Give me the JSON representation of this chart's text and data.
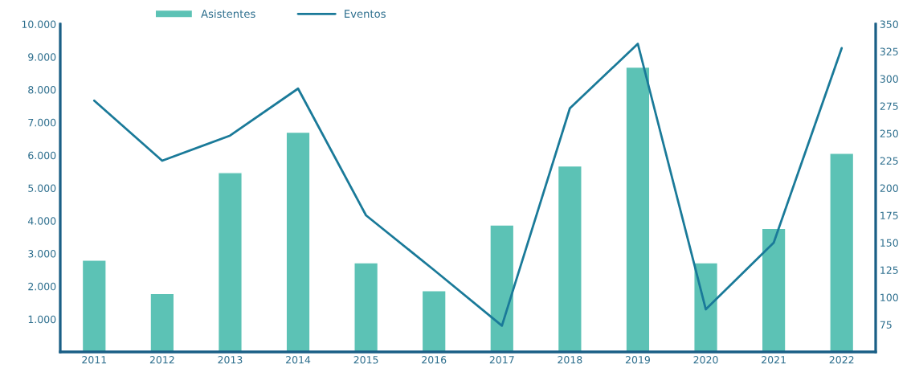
{
  "chart_data": {
    "type": "bar",
    "categories": [
      "2011",
      "2012",
      "2013",
      "2014",
      "2015",
      "2016",
      "2017",
      "2018",
      "2019",
      "2020",
      "2021",
      "2022"
    ],
    "series": [
      {
        "name": "Asistentes",
        "color": "#5cc2b5",
        "values": [
          2800,
          1780,
          5470,
          6700,
          2720,
          1870,
          3870,
          5670,
          8690,
          2720,
          3770,
          6060
        ]
      },
      {
        "name": "Eventos",
        "type": "line",
        "axis": "y2",
        "color": "#1a7a99",
        "values": [
          280,
          225,
          248,
          291,
          175,
          125,
          74,
          273,
          332,
          89,
          150,
          328
        ]
      }
    ],
    "ylim": [
      0,
      10000
    ],
    "yticks": [
      {
        "value": 1000,
        "label": "1.000"
      },
      {
        "value": 2000,
        "label": "2.000"
      },
      {
        "value": 3000,
        "label": "3.000"
      },
      {
        "value": 4000,
        "label": "4.000"
      },
      {
        "value": 5000,
        "label": "5.000"
      },
      {
        "value": 6000,
        "label": "6.000"
      },
      {
        "value": 7000,
        "label": "7.000"
      },
      {
        "value": 8000,
        "label": "8.000"
      },
      {
        "value": 9000,
        "label": "9.000"
      },
      {
        "value": 10000,
        "label": "10.000"
      }
    ],
    "y2lim": [
      50,
      350
    ],
    "y2ticks": [
      75,
      100,
      125,
      150,
      175,
      200,
      225,
      250,
      275,
      300,
      325,
      350
    ],
    "legend": "top",
    "grid": false,
    "marker": "none",
    "line_style": "solid"
  }
}
